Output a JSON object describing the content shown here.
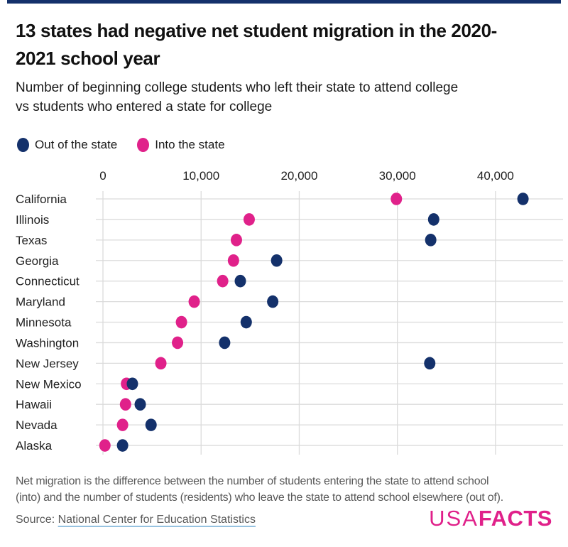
{
  "brand": {
    "navy": "#14316B",
    "magenta": "#E0218A",
    "gridline": "#DBDBDB",
    "text_dark": "#111111",
    "text_gray": "#595959",
    "link_underline": "#96C2E0"
  },
  "header": {
    "title_line1": "13 states had negative net student migration in the 2020-",
    "title_line2": "2021 school year",
    "subtitle_line1": "Number of beginning college students who left their state to attend college",
    "subtitle_line2": "vs students who entered a state for college"
  },
  "legend": {
    "items": [
      {
        "label": "Out of the state",
        "color": "#14316B"
      },
      {
        "label": "Into the state",
        "color": "#E0218A"
      }
    ]
  },
  "chart_data": {
    "type": "scatter",
    "title": "13 states had negative net student migration in the 2020-2021 school year",
    "xlabel": "",
    "ylabel": "",
    "categories": [
      "California",
      "Illinois",
      "Texas",
      "Georgia",
      "Connecticut",
      "Maryland",
      "Minnesota",
      "Washington",
      "New Jersey",
      "New Mexico",
      "Hawaii",
      "Nevada",
      "Alaska"
    ],
    "series": [
      {
        "name": "Out of the state",
        "color": "#14316B",
        "values": [
          42800,
          33700,
          33400,
          17700,
          14000,
          17300,
          14600,
          12400,
          33300,
          3000,
          3800,
          4900,
          2000
        ]
      },
      {
        "name": "Into the state",
        "color": "#E0218A",
        "values": [
          29900,
          14900,
          13600,
          13300,
          12200,
          9300,
          8000,
          7600,
          5900,
          2400,
          2300,
          2000,
          200
        ]
      }
    ],
    "xlim": [
      0,
      46900
    ],
    "xticks": [
      0,
      10000,
      20000,
      30000,
      40000
    ],
    "xtick_labels": [
      "0",
      "10,000",
      "20,000",
      "30,000",
      "40,000"
    ],
    "grid": true,
    "legend_position": "top-left"
  },
  "footer": {
    "note_line1": "Net migration is the difference between the number of students entering the state to attend school",
    "note_line2": "(into) and the number of students (residents) who leave the state to attend school elsewhere (out of).",
    "source_prefix": "Source: ",
    "source_link": "National Center for Education Statistics",
    "logo_usa": "USA",
    "logo_facts": "FACTS"
  }
}
